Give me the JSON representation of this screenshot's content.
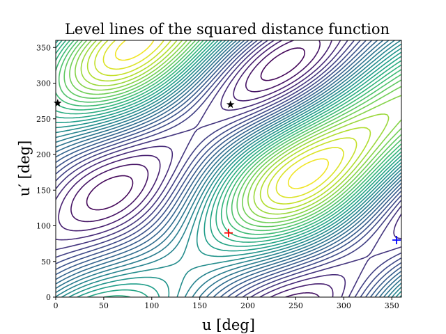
{
  "chart_data": {
    "type": "contour",
    "title": "Level lines of the squared distance function",
    "xlabel": "u [deg]",
    "ylabel": "u′ [deg]",
    "xlim": [
      0,
      360
    ],
    "ylim": [
      0,
      360
    ],
    "x_ticks": [
      0,
      50,
      100,
      150,
      200,
      250,
      300,
      350
    ],
    "y_ticks": [
      0,
      50,
      100,
      150,
      200,
      250,
      300,
      350
    ],
    "colormap": "viridis",
    "grid": false,
    "markers": [
      {
        "kind": "plus",
        "color": "#ff0000",
        "u": 180,
        "u_prime": 90
      },
      {
        "kind": "plus",
        "color": "#0000ff",
        "u": 355,
        "u_prime": 80
      },
      {
        "kind": "star",
        "color": "#000000",
        "u": 2,
        "u_prime": 272
      },
      {
        "kind": "star",
        "color": "#000000",
        "u": 182,
        "u_prime": 270
      }
    ],
    "level_range": [
      0.02,
      0.98
    ],
    "n_levels": 30
  }
}
